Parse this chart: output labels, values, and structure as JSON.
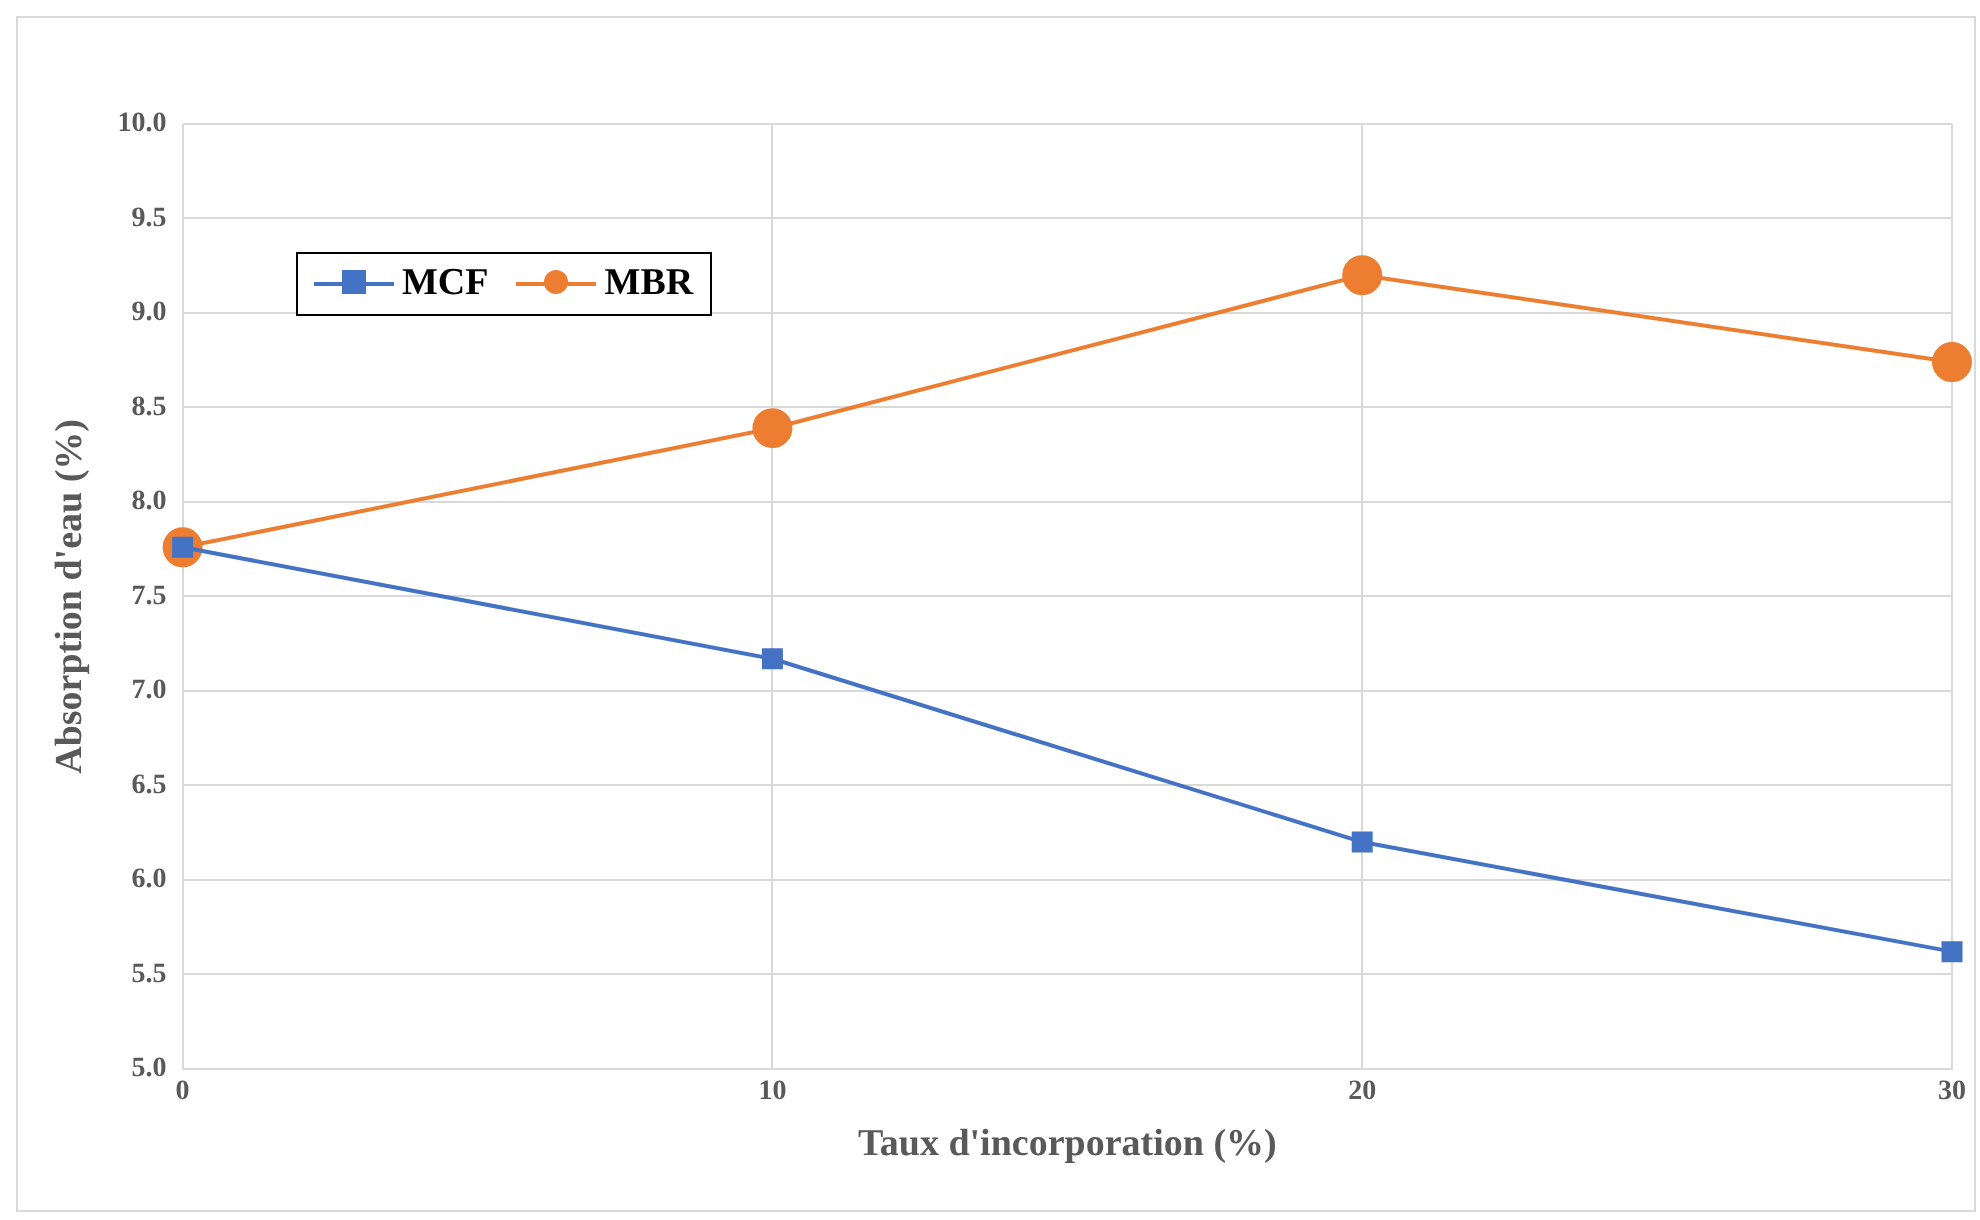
{
  "chart_data": {
    "type": "line",
    "xlabel": "Taux d'incorporation (%)",
    "ylabel": "Absorption d'eau (%)",
    "x": [
      0,
      10,
      20,
      30
    ],
    "series": [
      {
        "name": "MCF",
        "color": "#4472c4",
        "marker": "square",
        "values": [
          7.76,
          7.17,
          6.2,
          5.62
        ]
      },
      {
        "name": "MBR",
        "color": "#ed7d31",
        "marker": "circle",
        "values": [
          7.76,
          8.39,
          9.2,
          8.74
        ]
      }
    ],
    "xlim": [
      0,
      30
    ],
    "xticks": [
      0,
      10,
      20,
      30
    ],
    "ylim": [
      5,
      10
    ],
    "yticks": [
      {
        "value": 5,
        "label": "5.0"
      },
      {
        "value": 5.5,
        "label": "5.5"
      },
      {
        "value": 6,
        "label": "6.0"
      },
      {
        "value": 6.5,
        "label": "6.5"
      },
      {
        "value": 7,
        "label": "7.0"
      },
      {
        "value": 7.5,
        "label": "7.5"
      },
      {
        "value": 8,
        "label": "8.0"
      },
      {
        "value": 8.5,
        "label": "8.5"
      },
      {
        "value": 9,
        "label": "9.0"
      },
      {
        "value": 9.5,
        "label": "9.5"
      },
      {
        "value": 10,
        "label": "10.0"
      }
    ],
    "grid": true,
    "legend": "top left",
    "line_style": "solid"
  }
}
